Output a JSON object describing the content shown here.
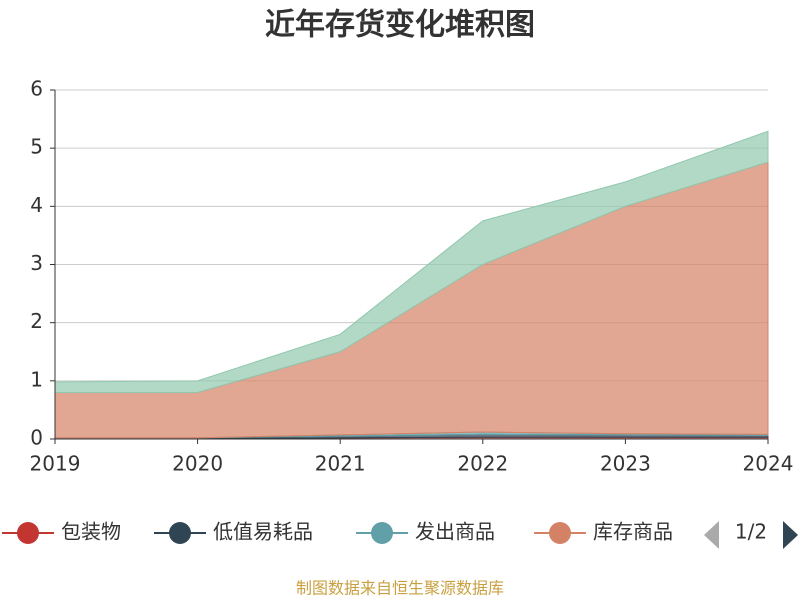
{
  "chart_data": {
    "type": "stacked-area",
    "title": "近年存货变化堆积图",
    "categories": [
      "2019",
      "2020",
      "2021",
      "2022",
      "2023",
      "2024"
    ],
    "series": [
      {
        "name": "包装物",
        "color": "#c23531",
        "values": [
          0.01,
          0.01,
          0.02,
          0.03,
          0.03,
          0.03
        ]
      },
      {
        "name": "低值易耗品",
        "color": "#2f4554",
        "values": [
          0.01,
          0.01,
          0.03,
          0.05,
          0.04,
          0.03
        ]
      },
      {
        "name": "发出商品",
        "color": "#61a0a8",
        "values": [
          0,
          0,
          0.02,
          0.04,
          0.02,
          0.02
        ]
      },
      {
        "name": "库存商品",
        "color": "#d48265",
        "values": [
          0.78,
          0.78,
          1.43,
          2.88,
          3.91,
          4.68
        ]
      },
      {
        "color": "#91c7ae",
        "values": [
          0.18,
          0.2,
          0.3,
          0.75,
          0.42,
          0.53
        ]
      }
    ],
    "ylim": [
      0,
      6
    ],
    "yticks": [
      0,
      1,
      2,
      3,
      4,
      5,
      6
    ],
    "grid": true,
    "legend_page": "1/2",
    "source": "制图数据来自恒生聚源数据库"
  }
}
